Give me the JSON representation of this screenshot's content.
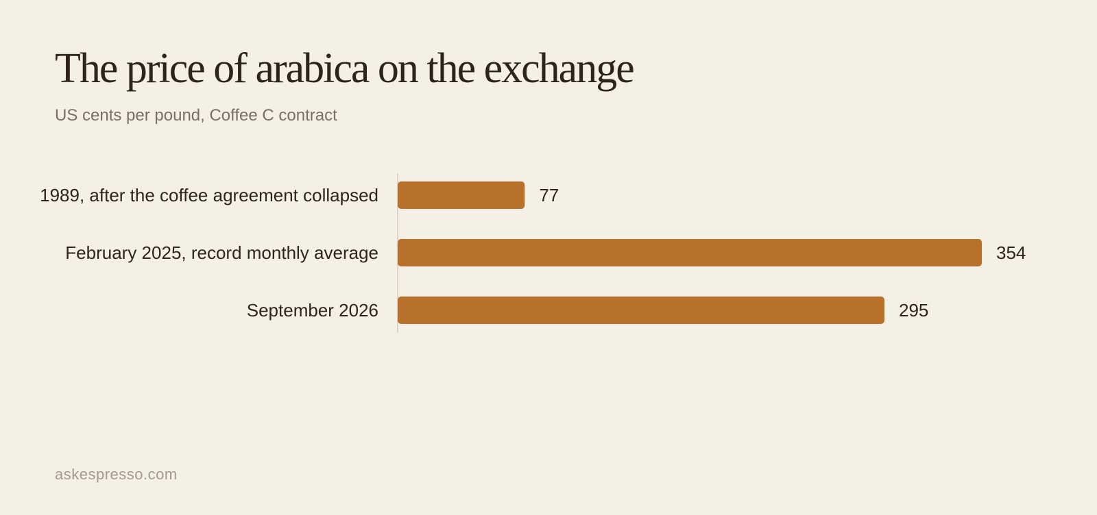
{
  "header": {
    "title": "The price of arabica on the exchange",
    "subtitle": "US cents per pound, Coffee C contract"
  },
  "footer": {
    "source": "askespresso.com"
  },
  "colors": {
    "bar": "#b8712a",
    "background": "#f5f0e6",
    "axis": "#ddd4c6"
  },
  "chart_data": {
    "type": "bar",
    "orientation": "horizontal",
    "title": "The price of arabica on the exchange",
    "subtitle": "US cents per pound, Coffee C contract",
    "categories": [
      "1989, after the coffee agreement collapsed",
      "February 2025, record monthly average",
      "September 2026"
    ],
    "values": [
      77,
      354,
      295
    ],
    "xlim": [
      0,
      354
    ],
    "grid": false,
    "legend": "none"
  }
}
